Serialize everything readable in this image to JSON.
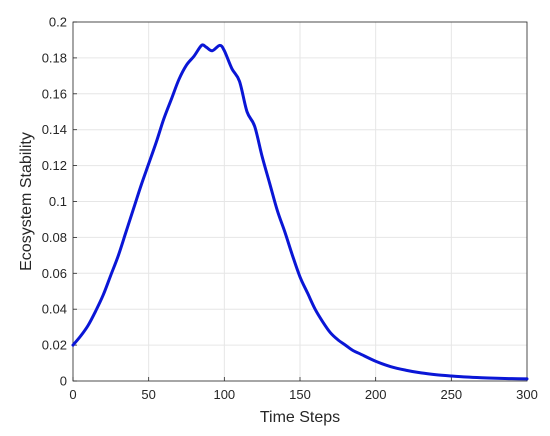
{
  "chart_data": {
    "type": "line",
    "title": "",
    "xlabel": "Time Steps",
    "ylabel": "Ecosystem Stability",
    "xlim": [
      0,
      300
    ],
    "ylim": [
      0,
      0.2
    ],
    "xticks": [
      0,
      50,
      100,
      150,
      200,
      250,
      300
    ],
    "yticks": [
      0,
      0.02,
      0.04,
      0.06,
      0.08,
      0.1,
      0.12,
      0.14,
      0.16,
      0.18,
      0.2
    ],
    "xtick_labels": [
      "0",
      "50",
      "100",
      "150",
      "200",
      "250",
      "300"
    ],
    "ytick_labels": [
      "0",
      "0.02",
      "0.04",
      "0.06",
      "0.08",
      "0.1",
      "0.12",
      "0.14",
      "0.16",
      "0.18",
      "0.2"
    ],
    "grid": true,
    "series": [
      {
        "color": "#0a16d6",
        "x": [
          0,
          5,
          10,
          15,
          20,
          25,
          30,
          35,
          40,
          45,
          50,
          55,
          60,
          65,
          70,
          75,
          80,
          85,
          88,
          92,
          97,
          100,
          105,
          110,
          115,
          120,
          125,
          130,
          135,
          140,
          145,
          150,
          155,
          160,
          165,
          170,
          175,
          180,
          185,
          190,
          200,
          210,
          220,
          230,
          240,
          250,
          260,
          270,
          280,
          290,
          300
        ],
        "y": [
          0.02,
          0.025,
          0.031,
          0.039,
          0.048,
          0.059,
          0.07,
          0.083,
          0.096,
          0.109,
          0.121,
          0.133,
          0.146,
          0.157,
          0.168,
          0.176,
          0.181,
          0.187,
          0.186,
          0.184,
          0.187,
          0.184,
          0.174,
          0.167,
          0.15,
          0.142,
          0.125,
          0.11,
          0.095,
          0.083,
          0.07,
          0.058,
          0.049,
          0.04,
          0.033,
          0.027,
          0.023,
          0.02,
          0.017,
          0.015,
          0.011,
          0.008,
          0.006,
          0.0045,
          0.0035,
          0.0028,
          0.0022,
          0.0018,
          0.0015,
          0.0013,
          0.0012
        ]
      }
    ]
  }
}
